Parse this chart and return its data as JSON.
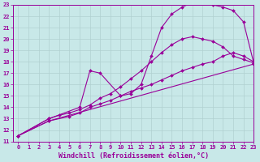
{
  "title": "",
  "xlabel": "Windchill (Refroidissement éolien,°C)",
  "ylabel": "",
  "xlim": [
    -0.5,
    23
  ],
  "ylim": [
    11,
    23
  ],
  "xticks": [
    0,
    1,
    2,
    3,
    4,
    5,
    6,
    7,
    8,
    9,
    10,
    11,
    12,
    13,
    14,
    15,
    16,
    17,
    18,
    19,
    20,
    21,
    22,
    23
  ],
  "yticks": [
    11,
    12,
    13,
    14,
    15,
    16,
    17,
    18,
    19,
    20,
    21,
    22,
    23
  ],
  "bg_color": "#c8e8e8",
  "line_color": "#990099",
  "grid_color": "#b0d0d0",
  "lines": [
    {
      "x": [
        0,
        3,
        23
      ],
      "y": [
        11.5,
        12.8,
        17.8
      ]
    },
    {
      "x": [
        0,
        3,
        5,
        6,
        7,
        8,
        9,
        10,
        11,
        12,
        13,
        14,
        15,
        16,
        17,
        18,
        19,
        20,
        21,
        22,
        23
      ],
      "y": [
        11.5,
        12.8,
        13.2,
        13.5,
        14.0,
        14.3,
        14.6,
        15.0,
        15.4,
        15.7,
        16.0,
        16.4,
        16.8,
        17.2,
        17.5,
        17.8,
        18.0,
        18.5,
        18.8,
        18.5,
        18.0
      ]
    },
    {
      "x": [
        0,
        3,
        4,
        5,
        6,
        7,
        8,
        9,
        10,
        11,
        12,
        13,
        14,
        15,
        16,
        17,
        18,
        19,
        20,
        21,
        22,
        23
      ],
      "y": [
        11.5,
        13.0,
        13.3,
        13.5,
        13.8,
        14.2,
        14.8,
        15.2,
        15.8,
        16.5,
        17.2,
        18.0,
        18.8,
        19.5,
        20.0,
        20.2,
        20.0,
        19.8,
        19.3,
        18.5,
        18.2,
        17.9
      ]
    },
    {
      "x": [
        0,
        3,
        6,
        7,
        8,
        10,
        11,
        12,
        13,
        14,
        15,
        16,
        17,
        18,
        19,
        20,
        21,
        22,
        23
      ],
      "y": [
        11.5,
        13.0,
        14.0,
        17.2,
        17.0,
        15.0,
        15.2,
        16.0,
        18.5,
        21.0,
        22.2,
        22.8,
        23.2,
        23.2,
        23.0,
        22.8,
        22.5,
        21.5,
        17.9
      ]
    }
  ],
  "tick_fontsize": 5,
  "label_fontsize": 6,
  "figsize": [
    3.2,
    2.0
  ],
  "dpi": 100
}
